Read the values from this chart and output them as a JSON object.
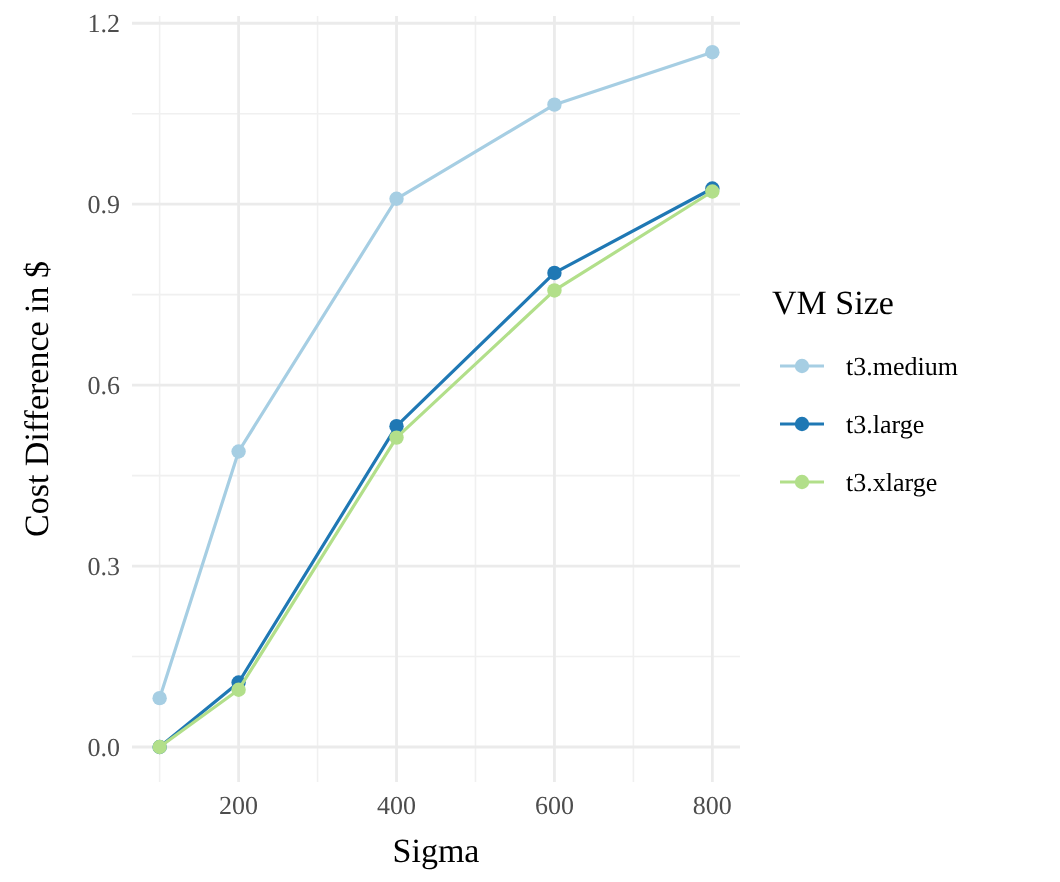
{
  "chart_data": {
    "type": "line",
    "xlabel": "Sigma",
    "ylabel": "Cost Difference in $",
    "legend_title": "VM Size",
    "x": [
      100,
      200,
      400,
      600,
      800
    ],
    "series": [
      {
        "name": "t3.medium",
        "color": "#a6cee3",
        "values": [
          0.081,
          0.49,
          0.909,
          1.065,
          1.152
        ]
      },
      {
        "name": "t3.large",
        "color": "#1f78b4",
        "values": [
          0,
          0.107,
          0.532,
          0.786,
          0.926
        ]
      },
      {
        "name": "t3.xlarge",
        "color": "#b2df8a",
        "values": [
          0,
          0.095,
          0.513,
          0.757,
          0.921
        ]
      }
    ],
    "xlim": [
      65,
      835
    ],
    "xticks": [
      200,
      400,
      600,
      800
    ],
    "ylim": [
      -0.058,
      1.212
    ],
    "yticks": [
      {
        "value": 0,
        "label": "0.0"
      },
      {
        "value": 0.3,
        "label": "0.3"
      },
      {
        "value": 0.6,
        "label": "0.6"
      },
      {
        "value": 0.9,
        "label": "0.9"
      },
      {
        "value": 1.2,
        "label": "1.2"
      }
    ],
    "grid": true,
    "legend": "right",
    "marker": "circle",
    "line_style": "solid"
  }
}
